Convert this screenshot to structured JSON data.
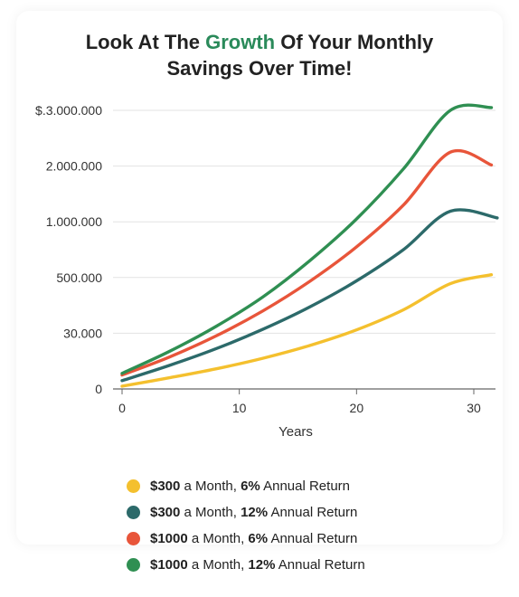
{
  "title": {
    "before": "Look At The ",
    "highlight": "Growth",
    "after": " Of Your Monthly",
    "line2": "Savings Over Time!"
  },
  "colors": {
    "highlight": "#2a8a5a",
    "grid": "#e3e3e3",
    "axis": "#666666"
  },
  "chart_data": {
    "type": "line",
    "xlabel": "Years",
    "ylabel": "",
    "xlim": [
      0,
      32
    ],
    "x_ticks": [
      "0",
      "10",
      "20",
      "30"
    ],
    "y_tick_labels": [
      "0",
      "30.000",
      "500.000",
      "1.000.000",
      "2.000.000",
      "$.3.000.000"
    ],
    "y_scale_note": "non-linear axis: equally spaced tick labels",
    "y_levels": [
      0,
      1,
      2,
      3,
      4,
      5
    ],
    "grid": true,
    "series": [
      {
        "name": "$300 a Month, 6% Annual Return",
        "color": "#f4c02e",
        "x": [
          0,
          4,
          8,
          12,
          16,
          20,
          24,
          28,
          31.5
        ],
        "y_level": [
          0.05,
          0.2,
          0.36,
          0.55,
          0.78,
          1.06,
          1.42,
          1.89,
          2.05
        ]
      },
      {
        "name": "$300 a Month, 12% Annual Return",
        "color": "#2c6a6a",
        "x": [
          0,
          4,
          8,
          12,
          16,
          20,
          24,
          28,
          32
        ],
        "y_level": [
          0.15,
          0.42,
          0.72,
          1.07,
          1.47,
          1.94,
          2.5,
          3.19,
          3.07
        ]
      },
      {
        "name": "$1000 a Month, 6% Annual Return",
        "color": "#e8553a",
        "x": [
          0,
          4,
          8,
          12,
          16,
          20,
          24,
          28,
          31.5
        ],
        "y_level": [
          0.25,
          0.57,
          0.95,
          1.4,
          1.93,
          2.55,
          3.3,
          4.25,
          4.02
        ]
      },
      {
        "name": "$1000 a Month, 12% Annual Return",
        "color": "#2f8f52",
        "x": [
          0,
          4,
          8,
          12,
          16,
          20,
          24,
          28,
          31.5
        ],
        "y_level": [
          0.28,
          0.67,
          1.12,
          1.65,
          2.3,
          3.05,
          3.95,
          5.0,
          5.05
        ]
      }
    ]
  },
  "legend": [
    {
      "bold1": "$300",
      "mid": " a Month, ",
      "bold2": "6%",
      "end": " Annual Return",
      "color": "#f4c02e"
    },
    {
      "bold1": "$300",
      "mid": " a Month, ",
      "bold2": "12%",
      "end": " Annual Return",
      "color": "#2c6a6a"
    },
    {
      "bold1": "$1000",
      "mid": " a Month, ",
      "bold2": "6%",
      "end": " Annual Return",
      "color": "#e8553a"
    },
    {
      "bold1": "$1000",
      "mid": " a Month, ",
      "bold2": "12%",
      "end": " Annual Return",
      "color": "#2f8f52"
    }
  ]
}
